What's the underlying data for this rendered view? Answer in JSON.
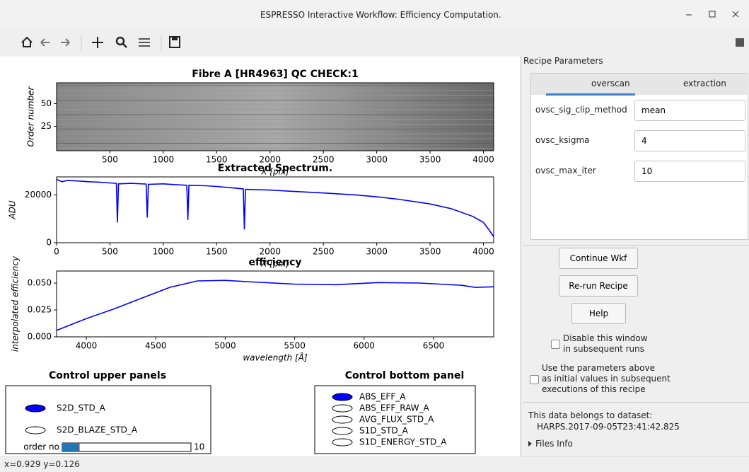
{
  "window": {
    "title": "ESPRESSO Interactive Workflow: Efficiency Computation."
  },
  "chart_data": [
    {
      "type": "image",
      "title": "Fibre A  [HR4963] QC CHECK:1",
      "xlabel": "X [pix]",
      "ylabel": "Order number",
      "xlim": [
        0,
        4096
      ],
      "ylim": [
        -2,
        73
      ],
      "xticks": [
        500,
        1000,
        1500,
        2000,
        2500,
        3000,
        3500,
        4000
      ],
      "yticks": [
        25,
        50
      ]
    },
    {
      "type": "line",
      "title": "Extracted Spectrum.",
      "xlabel": "X [pix]",
      "ylabel": "ADU",
      "xlim": [
        0,
        4096
      ],
      "ylim": [
        0,
        27500
      ],
      "xticks": [
        0,
        500,
        1000,
        1500,
        2000,
        2500,
        3000,
        3500,
        4000
      ],
      "yticks": [
        0,
        20000
      ],
      "x": [
        0,
        50,
        100,
        200,
        300,
        400,
        500,
        560,
        570,
        580,
        700,
        840,
        850,
        860,
        1000,
        1100,
        1220,
        1230,
        1240,
        1400,
        1500,
        1750,
        1760,
        1770,
        2000,
        2200,
        2500,
        2800,
        3000,
        3200,
        3500,
        3700,
        3900,
        4000,
        4050,
        4096
      ],
      "series": [
        {
          "color": "#0000ff",
          "values": [
            26500,
            25500,
            26000,
            25800,
            25500,
            25300,
            25000,
            24800,
            8500,
            24600,
            24800,
            24500,
            10500,
            24400,
            24600,
            24300,
            24000,
            9500,
            24000,
            23800,
            23500,
            22500,
            5500,
            22300,
            22000,
            21500,
            20800,
            20000,
            19200,
            18200,
            16200,
            14200,
            11000,
            8500,
            5500,
            2500
          ]
        }
      ]
    },
    {
      "type": "line",
      "title": "efficiency",
      "xlabel": "wavelength [Å]",
      "ylabel": "interpolated efficiency",
      "xlim": [
        3786,
        6933
      ],
      "ylim": [
        0,
        0.0612
      ],
      "xticks": [
        4000,
        4500,
        5000,
        5500,
        6000,
        6500
      ],
      "yticks": [
        {
          "value": 0,
          "label": "0.000"
        },
        {
          "value": 0.025,
          "label": "0.025"
        },
        {
          "value": 0.05,
          "label": "0.050"
        }
      ],
      "x": [
        3786,
        4000,
        4200,
        4400,
        4600,
        4800,
        5000,
        5200,
        5500,
        5800,
        6100,
        6400,
        6700,
        6800,
        6933
      ],
      "series": [
        {
          "color": "#0000ff",
          "values": [
            0.006,
            0.017,
            0.026,
            0.036,
            0.046,
            0.052,
            0.0525,
            0.051,
            0.049,
            0.0485,
            0.0505,
            0.05,
            0.048,
            0.046,
            0.0465
          ]
        }
      ]
    }
  ],
  "upper_control": {
    "title": "Control upper panels",
    "options": [
      "S2D_STD_A",
      "S2D_BLAZE_STD_A"
    ],
    "slider": {
      "label": "order no",
      "value": 10
    }
  },
  "bottom_control": {
    "title": "Control bottom panel",
    "options": [
      "ABS_EFF_A",
      "ABS_EFF_RAW_A",
      "AVG_FLUX_STD_A",
      "S1D_STD_A",
      "S1D_ENERGY_STD_A"
    ]
  },
  "recipe": {
    "title": "Recipe Parameters",
    "tabs": [
      "overscan",
      "extraction"
    ],
    "params": [
      {
        "name": "ovsc_sig_clip_method",
        "value": "mean"
      },
      {
        "name": "ovsc_ksigma",
        "value": 4
      },
      {
        "name": "ovsc_max_iter",
        "value": 10
      }
    ]
  },
  "buttons": [
    "Continue Wkf",
    "Re-run Recipe",
    "Help"
  ],
  "checkboxes": [
    [
      "Disable this window",
      "in subsequent runs"
    ],
    [
      "Use the parameters above",
      "as initial values in subsequent",
      "executions of this recipe"
    ]
  ],
  "dataset": {
    "label": "This data belongs to dataset:",
    "name": "HARPS.2017-09-05T23:41:42.825"
  },
  "files_info": "Files Info",
  "status": "x=0.929 y=0.126"
}
